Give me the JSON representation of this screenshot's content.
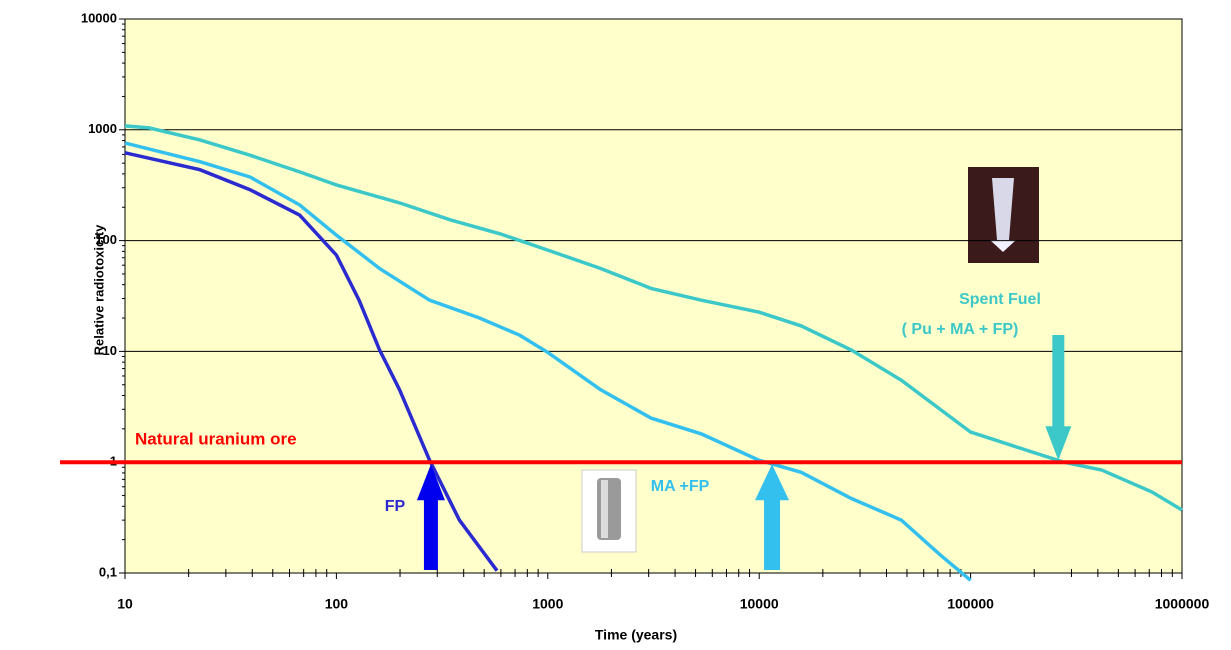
{
  "chart_data": {
    "type": "line",
    "x_label": "Time (years)",
    "y_label": "Relative radiotoxicity",
    "xlog": true,
    "ylog": true,
    "grid": true,
    "background": "#ffffcc",
    "xlim": [
      10,
      1000000
    ],
    "ylim": [
      0.1,
      10000
    ],
    "xticks": [
      10,
      100,
      1000,
      10000,
      100000,
      1000000
    ],
    "yticks": [
      {
        "value": 0.1,
        "label": "0,1"
      },
      1,
      10,
      100,
      1000,
      10000
    ],
    "hline": {
      "value": 1,
      "label": "Natural uranium ore",
      "color": "#ff0000"
    },
    "series": [
      {
        "name": "Spent Fuel",
        "subname": "( Pu + MA + FP)",
        "color": "#3cc8c8",
        "crossing": 260000,
        "x": [
          10,
          13,
          22.6,
          39,
          67,
          100,
          199,
          345,
          596,
          1000,
          1780,
          3080,
          5330,
          10000,
          15800,
          27300,
          47000,
          100000,
          140000,
          276000,
          417000,
          720000,
          1000000
        ],
        "values": [
          1084,
          1040,
          810,
          590,
          417,
          318,
          219,
          154,
          115,
          82,
          56,
          37,
          29,
          22.6,
          17,
          10.3,
          5.5,
          1.87,
          1.52,
          1,
          0.85,
          0.54,
          0.37
        ]
      },
      {
        "name": "MA +FP",
        "color": "#33c0ee",
        "crossing": 11500,
        "x": [
          10,
          22.6,
          39,
          67,
          100,
          160,
          276,
          475,
          736,
          1000,
          1780,
          3080,
          5330,
          10000,
          15800,
          27300,
          47000,
          72000,
          100000
        ],
        "values": [
          760,
          515,
          375,
          210,
          112,
          56,
          29,
          20,
          14,
          9.8,
          4.5,
          2.5,
          1.8,
          1.04,
          0.81,
          0.47,
          0.3,
          0.145,
          0.086
        ]
      },
      {
        "name": "FP",
        "color": "#2a2ad0",
        "crossing": 280,
        "x": [
          10,
          22.6,
          39,
          67,
          100,
          128,
          160,
          199,
          276,
          382,
          575
        ],
        "values": [
          620,
          436,
          288,
          170,
          74,
          29,
          10.3,
          4.5,
          1.04,
          0.3,
          0.105
        ]
      }
    ]
  }
}
